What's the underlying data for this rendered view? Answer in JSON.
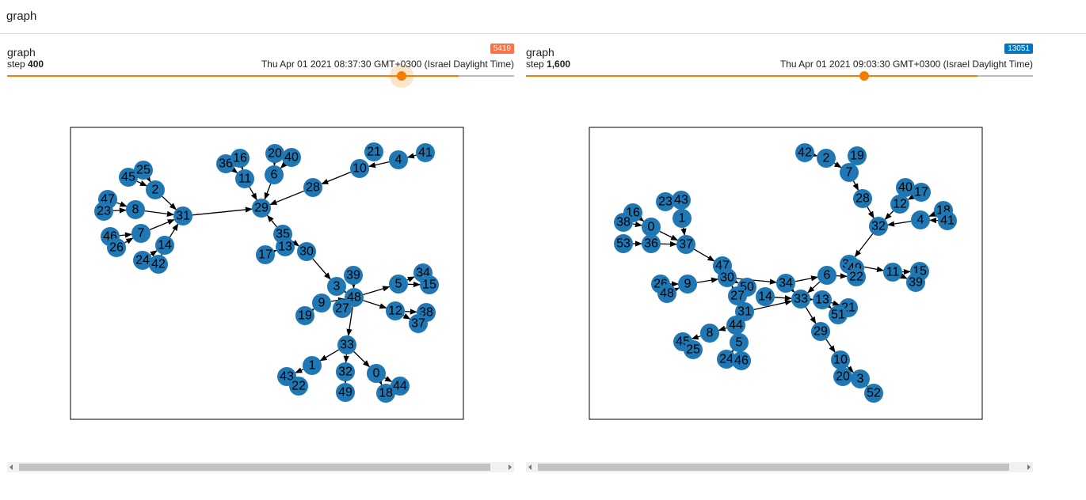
{
  "header": {
    "title": "graph"
  },
  "cards": [
    {
      "title": "graph",
      "step_label": "step",
      "step": "400",
      "timestamp": "Thu Apr 01 2021 08:37:30 GMT+0300 (Israel Daylight Time)",
      "badge": "5419",
      "graph": {
        "nodes": [
          "25",
          "45",
          "2",
          "47",
          "8",
          "23",
          "31",
          "46",
          "7",
          "26",
          "14",
          "24",
          "42",
          "36",
          "16",
          "11",
          "20",
          "40",
          "6",
          "29",
          "28",
          "21",
          "10",
          "4",
          "41",
          "35",
          "13",
          "17",
          "30",
          "39",
          "3",
          "34",
          "5",
          "15",
          "9",
          "48",
          "27",
          "19",
          "12",
          "38",
          "37",
          "33",
          "1",
          "43",
          "22",
          "32",
          "0",
          "44",
          "18",
          "49"
        ]
      }
    },
    {
      "title": "graph",
      "step_label": "step",
      "step": "1,600",
      "timestamp": "Thu Apr 01 2021 09:03:30 GMT+0300 (Israel Daylight Time)",
      "badge": "13051",
      "graph": {
        "nodes": [
          "42",
          "2",
          "19",
          "7",
          "28",
          "40",
          "17",
          "12",
          "18",
          "32",
          "4",
          "41",
          "23",
          "43",
          "1",
          "16",
          "38",
          "0",
          "53",
          "36",
          "37",
          "47",
          "35",
          "49",
          "22",
          "11",
          "15",
          "39",
          "26",
          "48",
          "9",
          "30",
          "50",
          "34",
          "6",
          "27",
          "14",
          "33",
          "13",
          "21",
          "51",
          "31",
          "44",
          "8",
          "45",
          "25",
          "5",
          "24",
          "46",
          "29",
          "10",
          "20",
          "3",
          "52"
        ]
      }
    }
  ]
}
